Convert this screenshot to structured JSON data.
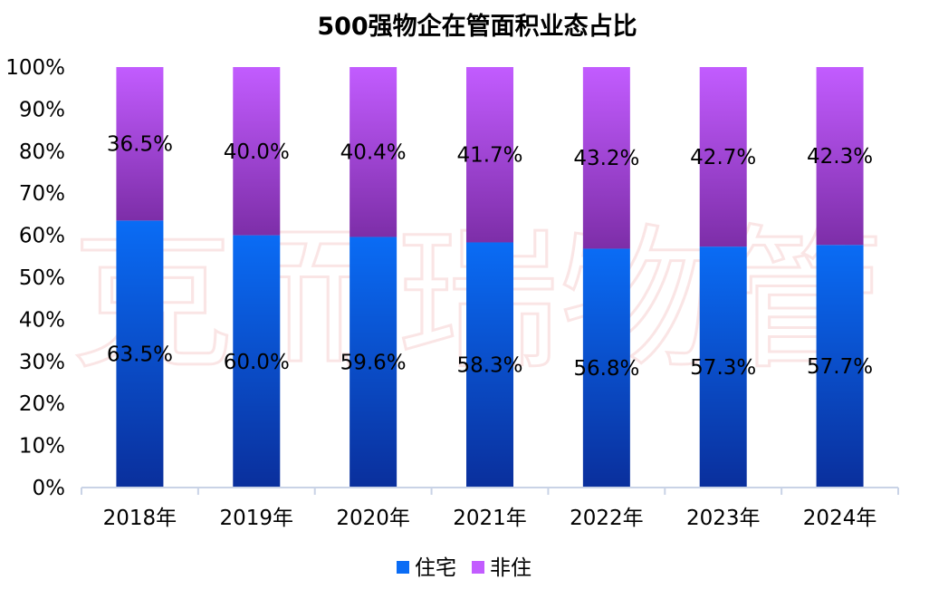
{
  "chart_data": {
    "type": "bar",
    "stacked": true,
    "title": "500强物企在管面积业态占比",
    "categories": [
      "2018年",
      "2019年",
      "2020年",
      "2021年",
      "2022年",
      "2023年",
      "2024年"
    ],
    "series": [
      {
        "name": "住宅",
        "values": [
          63.5,
          60.0,
          59.6,
          58.3,
          56.8,
          57.3,
          57.7
        ],
        "labels": [
          "63.5%",
          "60.0%",
          "59.6%",
          "58.3%",
          "56.8%",
          "57.3%",
          "57.7%"
        ],
        "color_top": "#0a6cf5",
        "color_bottom": "#0a2f9c"
      },
      {
        "name": "非住",
        "values": [
          36.5,
          40.0,
          40.4,
          41.7,
          43.2,
          42.7,
          42.3
        ],
        "labels": [
          "36.5%",
          "40.0%",
          "40.4%",
          "41.7%",
          "43.2%",
          "42.7%",
          "42.3%"
        ],
        "color_top": "#c25cff",
        "color_bottom": "#7d2ea8"
      }
    ],
    "y_ticks": [
      "0%",
      "10%",
      "20%",
      "30%",
      "40%",
      "50%",
      "60%",
      "70%",
      "80%",
      "90%",
      "100%"
    ],
    "ylim": [
      0,
      100
    ],
    "grid": false,
    "legend_position": "bottom",
    "watermark": "克而瑞物管"
  }
}
